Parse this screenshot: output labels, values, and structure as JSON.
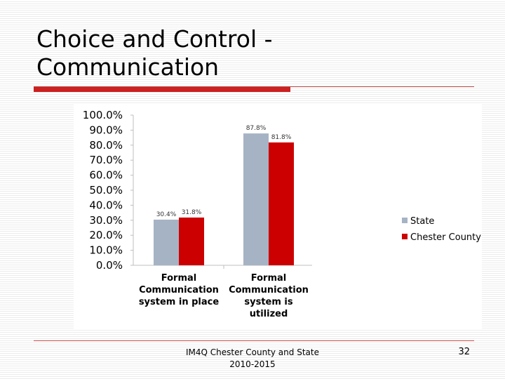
{
  "slide": {
    "title": "Choice and Control -\nCommunication",
    "footer": "IM4Q Chester County and State\n2010-2015",
    "page_number": "32"
  },
  "colors": {
    "State": "#a6b3c4",
    "Chester County": "#cc0000",
    "accent": "#cc1f1f"
  },
  "chart_data": {
    "type": "bar",
    "categories": [
      "Formal\nCommunication\nsystem in place",
      "Formal\nCommunication\nsystem is\nutilized"
    ],
    "series": [
      {
        "name": "State",
        "values": [
          30.4,
          87.8
        ],
        "labels": [
          "30.4%",
          "87.8%"
        ]
      },
      {
        "name": "Chester County",
        "values": [
          31.8,
          81.8
        ],
        "labels": [
          "31.8%",
          "81.8%"
        ]
      }
    ],
    "ylim": [
      0,
      100
    ],
    "y_ticks": [
      "0.0%",
      "10.0%",
      "20.0%",
      "30.0%",
      "40.0%",
      "50.0%",
      "60.0%",
      "70.0%",
      "80.0%",
      "90.0%",
      "100.0%"
    ],
    "title": "",
    "xlabel": "",
    "ylabel": "",
    "grid": false,
    "legend_position": "right"
  }
}
